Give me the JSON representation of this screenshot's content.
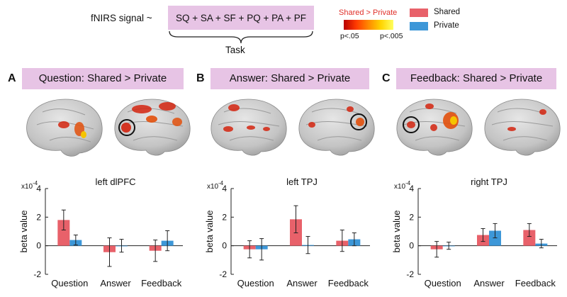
{
  "formula": {
    "lead": "fNIRS signal ~",
    "terms": "SQ + SA + SF + PQ + PA + PF",
    "brace_label": "Task"
  },
  "significance": {
    "title": "Shared > Private",
    "low": "p<.05",
    "high": "p<.005"
  },
  "legend": {
    "shared_label": "Shared",
    "private_label": "Private"
  },
  "colors": {
    "shared": "#e8616a",
    "private": "#3d97d8",
    "band": "#e7c4e5",
    "brain": "#c9c9c9",
    "highlight": "#d4240f"
  },
  "panels": [
    {
      "letter": "A",
      "title": "Question: Shared > Private"
    },
    {
      "letter": "B",
      "title": "Answer: Shared > Private"
    },
    {
      "letter": "C",
      "title": "Feedback: Shared > Private"
    }
  ],
  "chart_data": [
    {
      "type": "bar",
      "title": "left dlPFC",
      "xlabel": "",
      "ylabel": "beta value",
      "scale_label": "x10",
      "scale_exp": "-4",
      "ylim": [
        -2,
        4
      ],
      "yticks": [
        "4",
        "2",
        "0",
        "-2"
      ],
      "categories": [
        "Question",
        "Answer",
        "Feedback"
      ],
      "series": [
        {
          "name": "Shared",
          "values": [
            1.8,
            -0.45,
            -0.35
          ],
          "errors": [
            0.7,
            1.0,
            0.75
          ]
        },
        {
          "name": "Private",
          "values": [
            0.4,
            0.0,
            0.35
          ],
          "errors": [
            0.35,
            0.45,
            0.7
          ]
        }
      ]
    },
    {
      "type": "bar",
      "title": "left TPJ",
      "xlabel": "",
      "ylabel": "beta value",
      "scale_label": "x10",
      "scale_exp": "-4",
      "ylim": [
        -2,
        4
      ],
      "yticks": [
        "4",
        "2",
        "0",
        "-2"
      ],
      "categories": [
        "Question",
        "Answer",
        "Feedback"
      ],
      "series": [
        {
          "name": "Shared",
          "values": [
            -0.25,
            1.85,
            0.35
          ],
          "errors": [
            0.6,
            0.95,
            0.75
          ]
        },
        {
          "name": "Private",
          "values": [
            -0.25,
            0.05,
            0.45
          ],
          "errors": [
            0.75,
            0.6,
            0.45
          ]
        }
      ]
    },
    {
      "type": "bar",
      "title": "right TPJ",
      "xlabel": "",
      "ylabel": "beta value",
      "scale_label": "x10",
      "scale_exp": "-4",
      "ylim": [
        -2,
        4
      ],
      "yticks": [
        "4",
        "2",
        "0",
        "-2"
      ],
      "categories": [
        "Question",
        "Answer",
        "Feedback"
      ],
      "series": [
        {
          "name": "Shared",
          "values": [
            -0.25,
            0.75,
            1.1
          ],
          "errors": [
            0.55,
            0.45,
            0.45
          ]
        },
        {
          "name": "Private",
          "values": [
            0.0,
            1.05,
            0.15
          ],
          "errors": [
            0.25,
            0.5,
            0.3
          ]
        }
      ]
    }
  ]
}
